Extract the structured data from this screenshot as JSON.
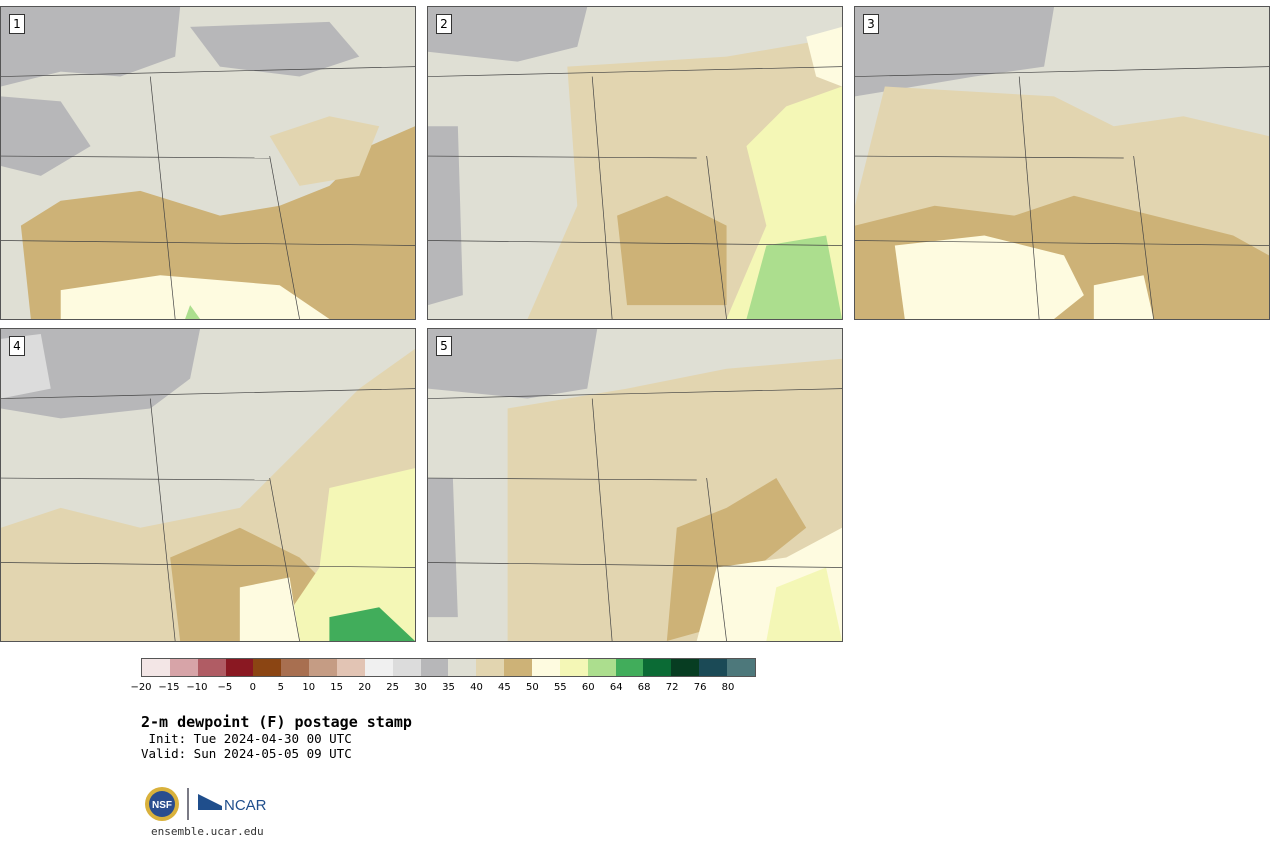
{
  "panels": [
    {
      "label": "1",
      "scheme": "p1"
    },
    {
      "label": "2",
      "scheme": "p2"
    },
    {
      "label": "3",
      "scheme": "p3"
    },
    {
      "label": "4",
      "scheme": "p4"
    },
    {
      "label": "5",
      "scheme": "p5"
    }
  ],
  "colorbar": {
    "colors": [
      "#f3e6e6",
      "#d7a4a8",
      "#b05c64",
      "#8a1822",
      "#8b4513",
      "#a86f50",
      "#c59c84",
      "#e2c4b4",
      "#f0f0f0",
      "#dcdcdc",
      "#b7b7b9",
      "#dfdfd4",
      "#e2d5b0",
      "#cdb277",
      "#fefbe0",
      "#f4f7b6",
      "#acde8e",
      "#41ad5b",
      "#0b6b35",
      "#073d22",
      "#1b4a56",
      "#4d787b"
    ],
    "ticks": [
      "−20",
      "−15",
      "−10",
      "−5",
      "0",
      "5",
      "10",
      "15",
      "20",
      "25",
      "30",
      "35",
      "40",
      "45",
      "50",
      "55",
      "60",
      "64",
      "68",
      "72",
      "76",
      "80"
    ]
  },
  "title": "2-m dewpoint (F) postage stamp",
  "init": " Init: Tue 2024-04-30 00 UTC",
  "valid": "Valid: Sun 2024-05-05 09 UTC",
  "logos": {
    "nsf": "NSF",
    "ncar": "NCAR"
  },
  "site": "ensemble.ucar.edu"
}
